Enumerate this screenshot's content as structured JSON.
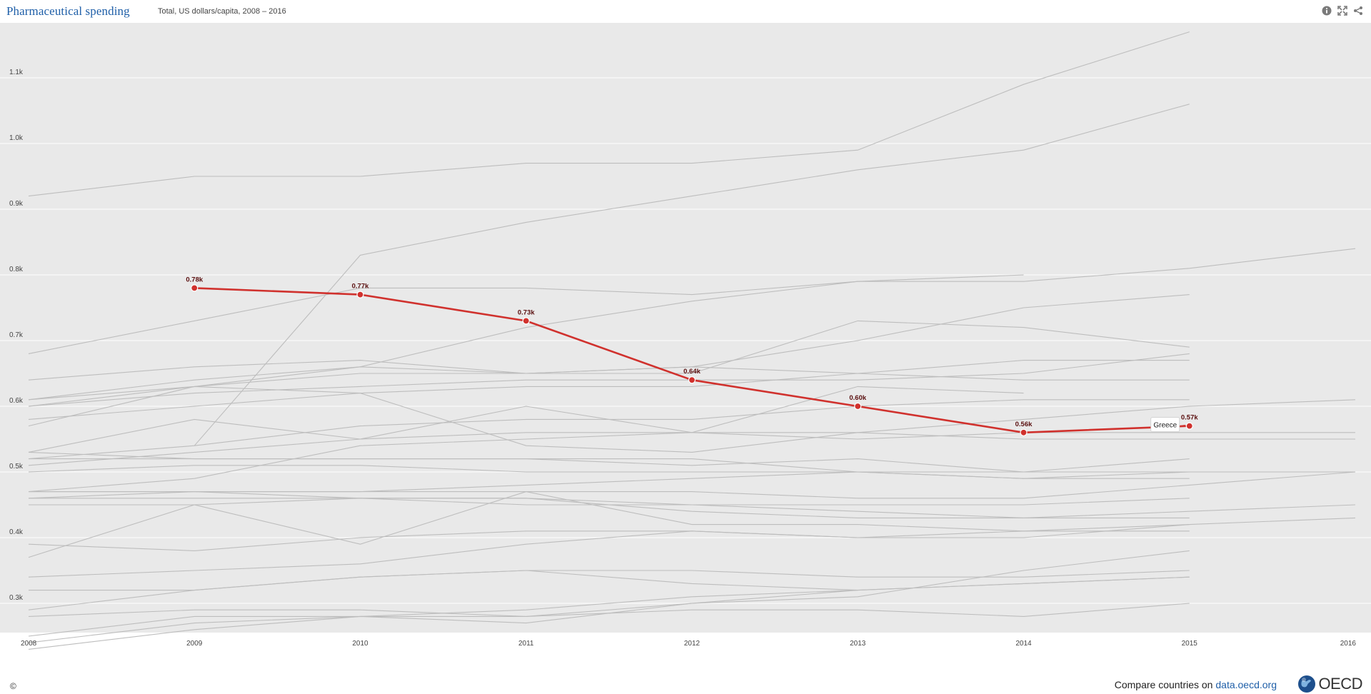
{
  "header": {
    "title": "Pharmaceutical spending",
    "subtitle": "Total, US dollars/capita, 2008 – 2016"
  },
  "icons": [
    "info-icon",
    "fullscreen-icon",
    "share-icon"
  ],
  "footer": {
    "copyright": "©",
    "compare_prefix": "Compare countries on ",
    "compare_link": "data.oecd.org",
    "brand": "OECD"
  },
  "colors": {
    "plot_background": "#e9e9e9",
    "gridline": "#ffffff",
    "background_series": "#bdbdbd",
    "highlight": "#d0312d",
    "title": "#1f5fa8"
  },
  "chart_data": {
    "type": "line",
    "title": "Pharmaceutical spending",
    "subtitle": "Total, US dollars/capita, 2008 – 2016",
    "x": [
      2008,
      2009,
      2010,
      2011,
      2012,
      2013,
      2014,
      2015,
      2016
    ],
    "xlim": [
      2008,
      2016
    ],
    "ylim": [
      0.23,
      1.2
    ],
    "y_ticks": [
      {
        "value": 0.3,
        "label": "0.3k"
      },
      {
        "value": 0.4,
        "label": "0.4k"
      },
      {
        "value": 0.5,
        "label": "0.5k"
      },
      {
        "value": 0.6,
        "label": "0.6k"
      },
      {
        "value": 0.7,
        "label": "0.7k"
      },
      {
        "value": 0.8,
        "label": "0.8k"
      },
      {
        "value": 0.9,
        "label": "0.9k"
      },
      {
        "value": 1.0,
        "label": "1.0k"
      },
      {
        "value": 1.1,
        "label": "1.1k"
      }
    ],
    "grid": true,
    "highlight": {
      "name": "Greece",
      "values": [
        null,
        0.78,
        0.77,
        0.73,
        0.64,
        0.6,
        0.56,
        0.57,
        null
      ],
      "labels": [
        null,
        "0.78k",
        "0.77k",
        "0.73k",
        "0.64k",
        "0.60k",
        "0.56k",
        "0.57k",
        null
      ]
    },
    "background_series": [
      [
        0.92,
        0.95,
        0.95,
        0.97,
        0.97,
        0.99,
        1.09,
        1.17,
        null
      ],
      [
        null,
        0.54,
        0.83,
        0.88,
        0.92,
        0.96,
        0.99,
        1.06,
        null
      ],
      [
        0.68,
        0.73,
        0.78,
        0.78,
        0.77,
        0.79,
        0.79,
        0.81,
        0.84
      ],
      [
        0.57,
        0.63,
        0.66,
        0.72,
        0.76,
        0.79,
        0.8,
        null,
        null
      ],
      [
        0.6,
        0.63,
        0.65,
        0.65,
        0.66,
        0.7,
        0.75,
        0.77,
        null
      ],
      [
        0.64,
        0.66,
        0.67,
        0.65,
        0.65,
        0.73,
        0.72,
        0.69,
        null
      ],
      [
        0.61,
        0.64,
        0.66,
        0.65,
        0.66,
        0.65,
        0.67,
        0.67,
        null
      ],
      [
        0.6,
        0.62,
        0.63,
        0.64,
        0.64,
        0.64,
        0.65,
        0.68,
        null
      ],
      [
        0.58,
        0.6,
        0.62,
        0.63,
        0.63,
        0.65,
        0.64,
        0.64,
        null
      ],
      [
        0.61,
        0.63,
        0.62,
        0.54,
        0.53,
        0.56,
        0.58,
        0.6,
        0.61
      ],
      [
        0.53,
        0.58,
        0.55,
        0.6,
        0.56,
        0.63,
        0.62,
        null,
        null
      ],
      [
        0.52,
        0.54,
        0.57,
        0.58,
        0.58,
        0.6,
        0.61,
        0.61,
        null
      ],
      [
        0.51,
        0.53,
        0.55,
        0.56,
        0.56,
        0.55,
        0.56,
        0.56,
        0.56
      ],
      [
        0.47,
        0.49,
        0.54,
        0.55,
        0.56,
        0.56,
        0.55,
        0.55,
        0.55
      ],
      [
        0.52,
        0.52,
        0.52,
        0.52,
        0.51,
        0.52,
        0.5,
        0.52,
        null
      ],
      [
        0.53,
        0.52,
        0.52,
        0.52,
        0.52,
        0.5,
        0.5,
        0.5,
        0.5
      ],
      [
        0.5,
        0.51,
        0.51,
        0.5,
        0.5,
        0.5,
        0.49,
        0.5,
        0.5
      ],
      [
        0.47,
        0.47,
        0.47,
        0.48,
        0.49,
        0.5,
        0.49,
        0.49,
        null
      ],
      [
        0.46,
        0.47,
        0.47,
        0.47,
        0.47,
        0.46,
        0.46,
        0.48,
        0.5
      ],
      [
        0.47,
        0.47,
        0.46,
        0.45,
        0.45,
        0.45,
        0.45,
        0.46,
        null
      ],
      [
        0.46,
        0.46,
        0.46,
        0.46,
        0.44,
        0.43,
        0.43,
        0.43,
        null
      ],
      [
        0.45,
        0.45,
        0.46,
        0.46,
        0.45,
        0.44,
        0.43,
        0.44,
        0.45
      ],
      [
        0.37,
        0.45,
        0.39,
        0.47,
        0.42,
        0.42,
        0.41,
        0.42,
        null
      ],
      [
        0.39,
        0.38,
        0.4,
        0.41,
        0.41,
        0.4,
        0.41,
        0.41,
        null
      ],
      [
        0.34,
        0.35,
        0.36,
        0.39,
        0.41,
        0.4,
        0.4,
        0.42,
        0.43
      ],
      [
        0.32,
        0.32,
        0.34,
        0.35,
        0.35,
        0.34,
        0.34,
        0.35,
        null
      ],
      [
        0.29,
        0.32,
        0.34,
        0.35,
        0.33,
        0.32,
        0.33,
        0.34,
        null
      ],
      [
        0.28,
        0.29,
        0.29,
        0.28,
        0.3,
        0.31,
        0.35,
        0.38,
        null
      ],
      [
        0.25,
        0.28,
        0.28,
        0.28,
        0.29,
        0.29,
        0.28,
        0.3,
        null
      ],
      [
        0.24,
        0.27,
        0.28,
        0.29,
        0.31,
        0.32,
        0.33,
        0.34,
        null
      ],
      [
        0.23,
        0.26,
        0.28,
        0.27,
        0.3,
        0.32,
        null,
        null,
        null
      ]
    ]
  }
}
